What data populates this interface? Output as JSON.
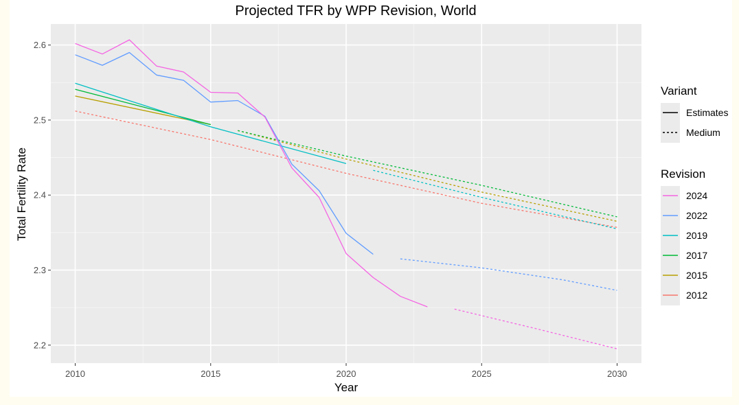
{
  "chart_data": {
    "type": "line",
    "title": "Projected TFR by WPP Revision, World",
    "xlabel": "Year",
    "ylabel": "Total Fertility Rate",
    "xlim": [
      2009.1,
      2030.9
    ],
    "ylim": [
      2.176,
      2.628
    ],
    "x_ticks": [
      2010,
      2015,
      2020,
      2025,
      2030
    ],
    "x_tick_labels": [
      "2010",
      "2015",
      "2020",
      "2025",
      "2030"
    ],
    "y_ticks": [
      2.2,
      2.3,
      2.4,
      2.5,
      2.6
    ],
    "y_tick_labels": [
      "2.2",
      "2.3",
      "2.4",
      "2.5",
      "2.6"
    ],
    "grid": true,
    "legend_position": "right",
    "legend_variant": {
      "title": "Variant",
      "items": [
        {
          "label": "Estimates",
          "linetype": "solid"
        },
        {
          "label": "Medium",
          "linetype": "dashed"
        }
      ]
    },
    "legend_revision": {
      "title": "Revision",
      "items": [
        {
          "label": "2024",
          "color": "#f564e3"
        },
        {
          "label": "2022",
          "color": "#619cff"
        },
        {
          "label": "2019",
          "color": "#00bfc4"
        },
        {
          "label": "2017",
          "color": "#00ba38"
        },
        {
          "label": "2015",
          "color": "#b79f00"
        },
        {
          "label": "2012",
          "color": "#f8766d"
        }
      ]
    },
    "series": [
      {
        "revision": "2012",
        "variant": "Medium",
        "color": "#f8766d",
        "x": [
          2010,
          2015,
          2020,
          2025,
          2030
        ],
        "y": [
          2.512,
          2.474,
          2.429,
          2.389,
          2.357
        ]
      },
      {
        "revision": "2015",
        "variant": "Estimates",
        "color": "#b79f00",
        "x": [
          2010,
          2015
        ],
        "y": [
          2.532,
          2.494
        ]
      },
      {
        "revision": "2015",
        "variant": "Medium",
        "color": "#b79f00",
        "x": [
          2016,
          2020,
          2025,
          2030
        ],
        "y": [
          2.486,
          2.448,
          2.404,
          2.365
        ]
      },
      {
        "revision": "2017",
        "variant": "Estimates",
        "color": "#00ba38",
        "x": [
          2010,
          2015
        ],
        "y": [
          2.541,
          2.494
        ]
      },
      {
        "revision": "2017",
        "variant": "Medium",
        "color": "#00ba38",
        "x": [
          2016,
          2020,
          2025,
          2030
        ],
        "y": [
          2.486,
          2.452,
          2.413,
          2.371
        ]
      },
      {
        "revision": "2019",
        "variant": "Estimates",
        "color": "#00bfc4",
        "x": [
          2010,
          2015,
          2020
        ],
        "y": [
          2.549,
          2.491,
          2.442
        ]
      },
      {
        "revision": "2019",
        "variant": "Medium",
        "color": "#00bfc4",
        "x": [
          2021,
          2025,
          2030
        ],
        "y": [
          2.433,
          2.397,
          2.355
        ]
      },
      {
        "revision": "2022",
        "variant": "Estimates",
        "color": "#619cff",
        "x": [
          2010,
          2011,
          2012,
          2013,
          2014,
          2015,
          2016,
          2017,
          2018,
          2019,
          2020,
          2021
        ],
        "y": [
          2.587,
          2.573,
          2.59,
          2.56,
          2.553,
          2.524,
          2.526,
          2.505,
          2.441,
          2.406,
          2.349,
          2.321
        ]
      },
      {
        "revision": "2022",
        "variant": "Medium",
        "color": "#619cff",
        "x": [
          2022,
          2025,
          2028,
          2030
        ],
        "y": [
          2.315,
          2.303,
          2.287,
          2.273
        ]
      },
      {
        "revision": "2024",
        "variant": "Estimates",
        "color": "#f564e3",
        "x": [
          2010,
          2011,
          2012,
          2013,
          2014,
          2015,
          2016,
          2017,
          2018,
          2019,
          2020,
          2021,
          2022,
          2023
        ],
        "y": [
          2.602,
          2.588,
          2.607,
          2.572,
          2.564,
          2.537,
          2.536,
          2.504,
          2.436,
          2.397,
          2.322,
          2.29,
          2.265,
          2.251
        ]
      },
      {
        "revision": "2024",
        "variant": "Medium",
        "color": "#f564e3",
        "x": [
          2024,
          2027,
          2030
        ],
        "y": [
          2.248,
          2.222,
          2.195
        ]
      }
    ]
  }
}
